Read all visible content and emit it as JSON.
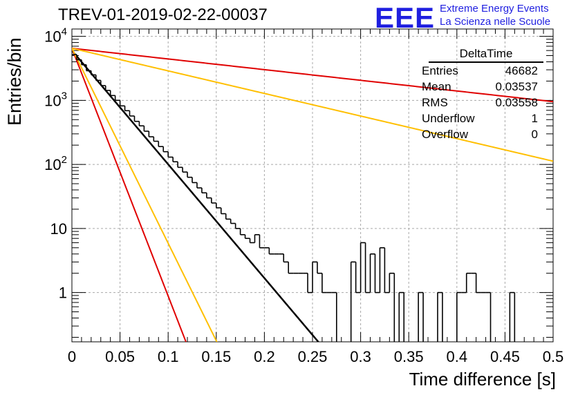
{
  "page": {
    "title": "TREV-01-2019-02-22-00037",
    "logo_text": "EEE",
    "logo_line1": "Extreme Energy Events",
    "logo_line2": "La Scienza nelle Scuole"
  },
  "stats_box": {
    "title": "DeltaTime",
    "rows": [
      {
        "label": "Entries",
        "value": "46682"
      },
      {
        "label": "Mean",
        "value": "0.03537"
      },
      {
        "label": "RMS",
        "value": "0.03558"
      },
      {
        "label": "Underflow",
        "value": "1"
      },
      {
        "label": "Overflow",
        "value": "0"
      }
    ]
  },
  "chart_data": {
    "type": "line",
    "title": "TREV-01-2019-02-22-00037",
    "xlabel": "Time difference [s]",
    "ylabel": "Entries/bin",
    "xlim": [
      0,
      0.5
    ],
    "ylim": [
      0.17,
      13000
    ],
    "y_scale": "log",
    "grid": true,
    "x_ticks": [
      "0",
      "0.05",
      "0.1",
      "0.15",
      "0.2",
      "0.25",
      "0.3",
      "0.35",
      "0.4",
      "0.45",
      "0.5"
    ],
    "y_ticks": [
      {
        "value": 1,
        "label": "1"
      },
      {
        "value": 10,
        "label": "10"
      },
      {
        "value": 100,
        "label": "10^2"
      },
      {
        "value": 1000,
        "label": "10^3"
      },
      {
        "value": 10000,
        "label": "10^4"
      }
    ],
    "histogram": {
      "bin_width": 0.005,
      "bin_start": 0,
      "counts": [
        5200,
        4300,
        3600,
        2900,
        2500,
        2050,
        1700,
        1430,
        1190,
        1000,
        820,
        690,
        570,
        470,
        400,
        330,
        270,
        230,
        190,
        158,
        130,
        110,
        90,
        76,
        63,
        52,
        43,
        36,
        30,
        25,
        21,
        17,
        14,
        12,
        10,
        8,
        7,
        6,
        8,
        5,
        5,
        4,
        4,
        4,
        3,
        2,
        2,
        2,
        2,
        1,
        3,
        2,
        1,
        1,
        1,
        0,
        0,
        0,
        3,
        1,
        6,
        1,
        4,
        1,
        5,
        1,
        2,
        0,
        1,
        0,
        0,
        0,
        1,
        0,
        0,
        0,
        1,
        0,
        0,
        0,
        1,
        1,
        2,
        2,
        1,
        1,
        1,
        0,
        0,
        0,
        0,
        1,
        0,
        0,
        0,
        0,
        0,
        0,
        0,
        0,
        0,
        0,
        0,
        0
      ]
    },
    "series": [
      {
        "name": "",
        "color": "#000000",
        "kind": "exponential",
        "amplitude": 6000,
        "tau": 0.02445,
        "x_end": 0.375
      },
      {
        "name": "",
        "color": "#e00000",
        "kind": "exponential",
        "amplitude": 6500,
        "tau": 0.01123,
        "x_end": 0.5
      },
      {
        "name": "",
        "color": "#ffbf00",
        "kind": "exponential",
        "amplitude": 6500,
        "tau": 0.01427,
        "x_end": 0.5
      },
      {
        "name": "",
        "color": "#e00000",
        "kind": "exponential",
        "amplitude": 6500,
        "tau": 0.2606,
        "x_end": 0.5
      },
      {
        "name": "",
        "color": "#ffbf00",
        "kind": "exponential",
        "amplitude": 6500,
        "tau": 0.1232,
        "x_end": 0.5
      }
    ]
  }
}
